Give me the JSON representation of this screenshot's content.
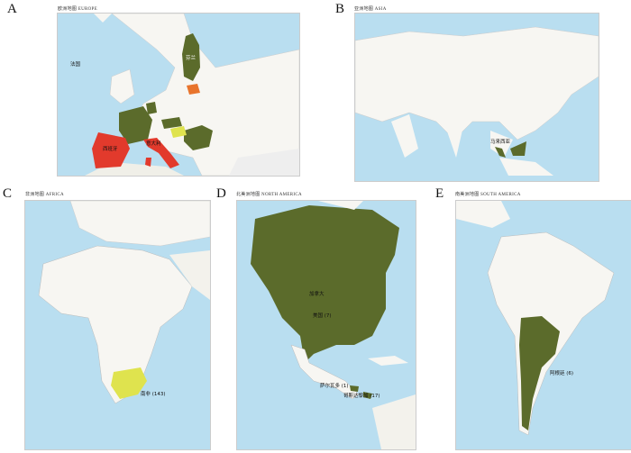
{
  "colors": {
    "sea": "#b9def0",
    "land": "#f7f6f2",
    "green": "#5b6b2b",
    "red": "#e23a2c",
    "yellow": "#dfe34e",
    "orange": "#e8742c"
  },
  "panels": [
    {
      "letter": "A",
      "title": "欧洲地图  EUROPE",
      "labels": [
        "法国",
        "西班牙",
        "意大利",
        "芬兰"
      ]
    },
    {
      "letter": "B",
      "title": "亚洲地图  ASIA",
      "labels": [
        "马来西亚"
      ]
    },
    {
      "letter": "C",
      "title": "非洲地图  AFRICA",
      "labels": [
        "南非 (143)"
      ]
    },
    {
      "letter": "D",
      "title": "北美洲地图  NORTH AMERICA",
      "labels": [
        "加拿大",
        "美国 (7)",
        "萨尔瓦多 (1)",
        "哥斯达黎加 (17)"
      ]
    },
    {
      "letter": "E",
      "title": "南美洲地图  SOUTH AMERICA",
      "labels": [
        "阿根廷 (6)"
      ]
    }
  ]
}
